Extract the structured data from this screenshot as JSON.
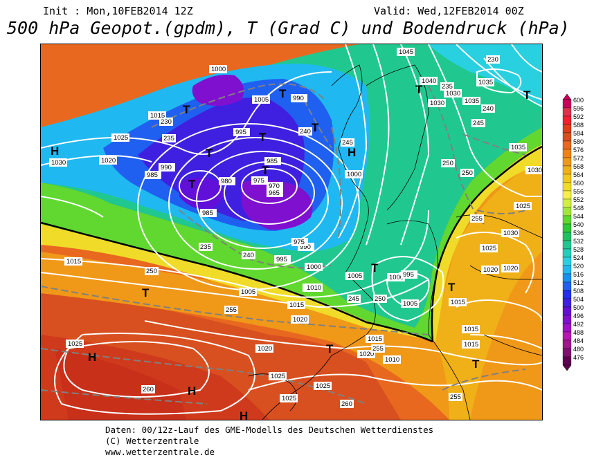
{
  "header": {
    "init": "Init : Mon,10FEB2014 12Z",
    "valid": "Valid: Wed,12FEB2014 00Z",
    "title": "500 hPa Geopot.(gpdm), T (Grad C) und Bodendruck (hPa)"
  },
  "footer": {
    "line1": "Daten: 00/12z-Lauf des GME-Modells des Deutschen Wetterdienstes",
    "line2": "(C) Wetterzentrale",
    "line3": "www.wetterzentrale.de"
  },
  "legend": {
    "values": [
      "600",
      "596",
      "592",
      "588",
      "584",
      "580",
      "576",
      "572",
      "568",
      "564",
      "560",
      "556",
      "552",
      "548",
      "544",
      "540",
      "536",
      "532",
      "528",
      "524",
      "520",
      "516",
      "512",
      "508",
      "504",
      "500",
      "496",
      "492",
      "488",
      "484",
      "480",
      "476"
    ],
    "colors": [
      "#c8005a",
      "#e0304a",
      "#f02030",
      "#e03c1c",
      "#d85020",
      "#e86820",
      "#f08018",
      "#f09818",
      "#f0b018",
      "#f0c820",
      "#f0dc28",
      "#f8f048",
      "#d0f040",
      "#a0e838",
      "#60d830",
      "#30c838",
      "#20c060",
      "#20c890",
      "#20d0b8",
      "#28d0e0",
      "#20b8f0",
      "#1890f0",
      "#2060f0",
      "#2030e8",
      "#4020e0",
      "#6010d8",
      "#8010d0",
      "#a010c8",
      "#b818b0",
      "#a01888",
      "#801070",
      "#600050"
    ]
  },
  "map": {
    "isobar_labels": [
      "1045",
      "1040",
      "1035",
      "1035",
      "1030",
      "1035",
      "1030",
      "1025",
      "1020",
      "1015",
      "1030",
      "1025",
      "1020",
      "1015",
      "1010",
      "1005",
      "1000",
      "995",
      "990",
      "985",
      "980",
      "975",
      "970",
      "965",
      "1000",
      "1005",
      "995",
      "990",
      "985",
      "1015",
      "1010",
      "1005",
      "1000",
      "995",
      "1020",
      "1015",
      "1025",
      "1020",
      "1015",
      "1010",
      "1025",
      "1020",
      "1015",
      "1025",
      "1030",
      "1025",
      "1020",
      "1015",
      "1000",
      "990",
      "985",
      "975",
      "1030",
      "1025",
      "1005"
    ],
    "geopot_labels": [
      "230",
      "235",
      "240",
      "245",
      "250",
      "255",
      "260",
      "235",
      "240",
      "245",
      "250",
      "255",
      "230",
      "235",
      "240",
      "245",
      "250",
      "250",
      "255",
      "255",
      "260"
    ],
    "pressure_centers": [
      {
        "type": "H"
      },
      {
        "type": "H"
      },
      {
        "type": "H"
      },
      {
        "type": "H"
      },
      {
        "type": "H"
      },
      {
        "type": "T"
      },
      {
        "type": "T"
      },
      {
        "type": "T"
      },
      {
        "type": "T"
      },
      {
        "type": "T"
      },
      {
        "type": "T"
      },
      {
        "type": "T"
      },
      {
        "type": "T"
      },
      {
        "type": "T"
      },
      {
        "type": "T"
      },
      {
        "type": "T"
      },
      {
        "type": "T"
      },
      {
        "type": "T"
      },
      {
        "type": "T"
      }
    ]
  }
}
